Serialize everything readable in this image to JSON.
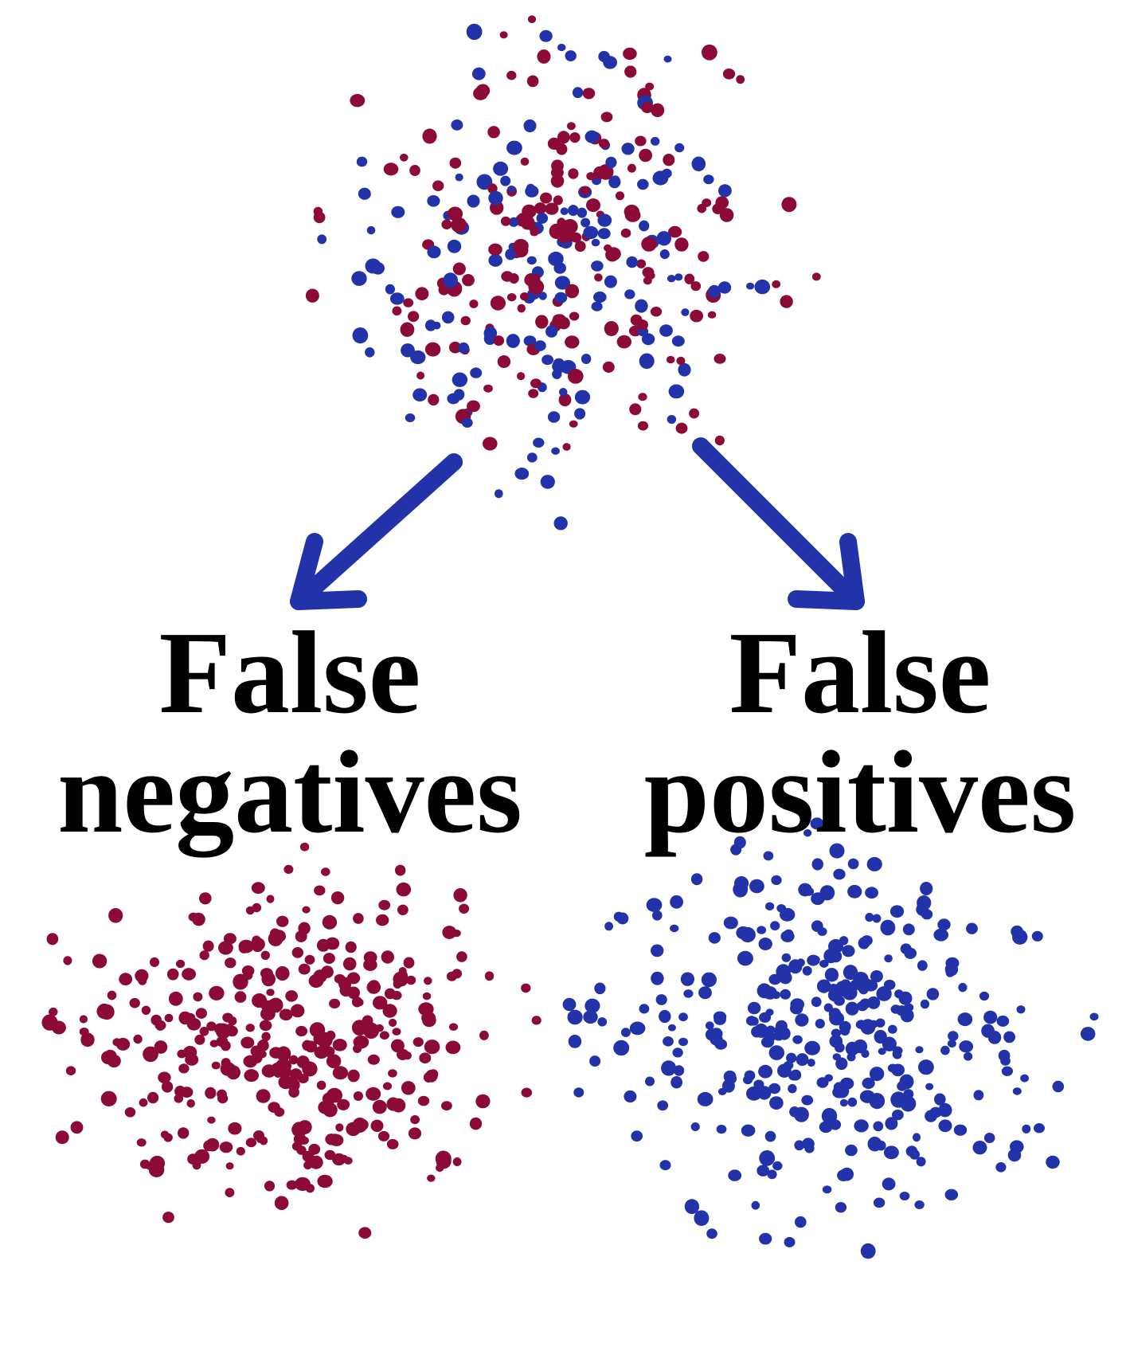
{
  "labels": {
    "left": {
      "line1": "False",
      "line2": "negatives"
    },
    "right": {
      "line1": "False",
      "line2": "positives"
    }
  },
  "colors": {
    "negative_dot": "#8b0a36",
    "positive_dot": "#2233aa",
    "arrow": "#2233aa",
    "text": "#000000"
  },
  "clusters": {
    "mixed": {
      "dots": "mixed-red-and-blue"
    },
    "negatives": {
      "dots": "red-only"
    },
    "positives": {
      "dots": "blue-only"
    }
  },
  "arrows": {
    "left": {
      "icon": "arrow-down-left-icon"
    },
    "right": {
      "icon": "arrow-down-right-icon"
    }
  }
}
